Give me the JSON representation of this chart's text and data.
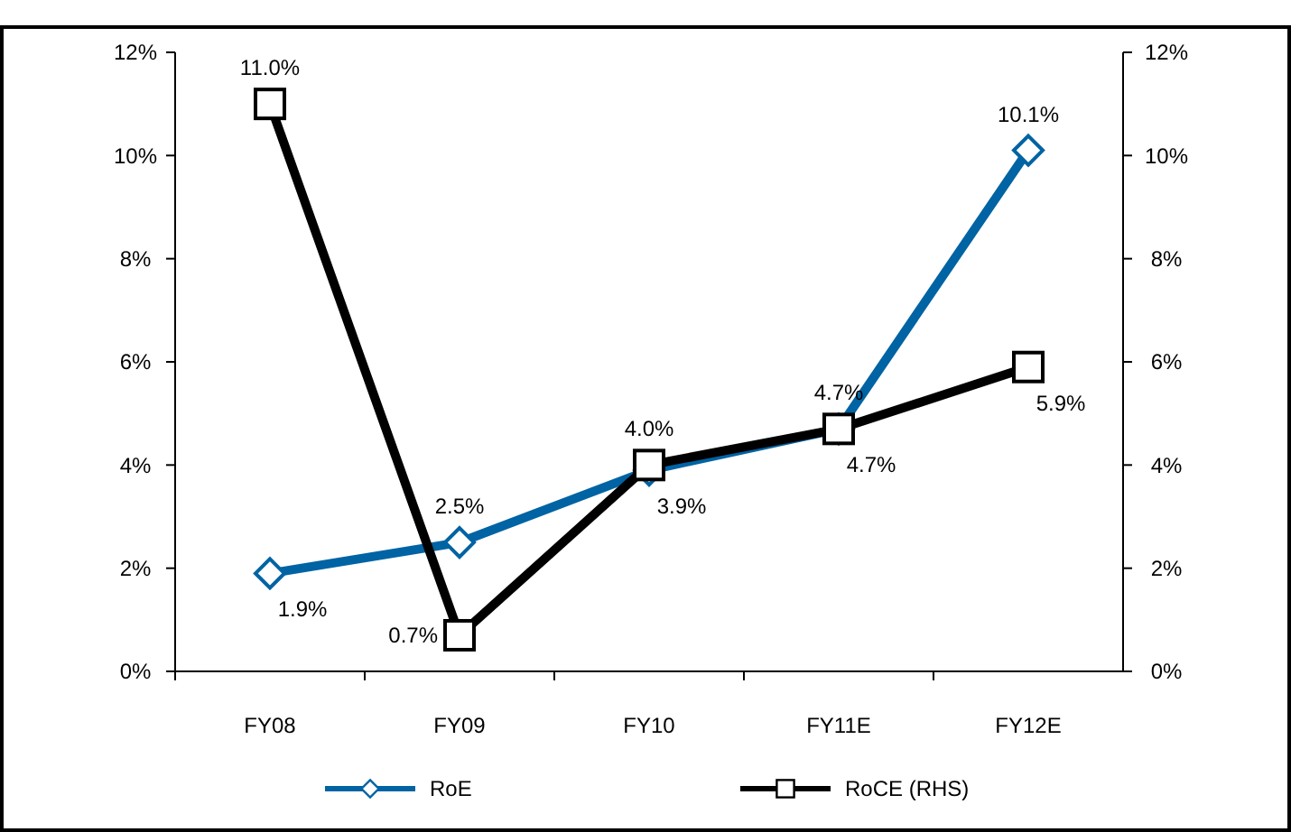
{
  "chart_data": {
    "type": "line",
    "categories": [
      "FY08",
      "FY09",
      "FY10",
      "FY11E",
      "FY12E"
    ],
    "series": [
      {
        "name": "RoE",
        "color": "#0063a3",
        "values": [
          1.9,
          2.5,
          3.9,
          4.7,
          10.1
        ],
        "value_labels": [
          "1.9%",
          "2.5%",
          "3.9%",
          "4.7%",
          "10.1%"
        ],
        "marker": "diamond"
      },
      {
        "name": "RoCE (RHS)",
        "color": "#000000",
        "values": [
          11.0,
          0.7,
          4.0,
          4.7,
          5.9
        ],
        "value_labels": [
          "11.0%",
          "0.7%",
          "4.0%",
          "4.7%",
          "5.9%"
        ],
        "marker": "square",
        "axis": "y2"
      }
    ],
    "ylim": [
      0,
      12
    ],
    "yticks": [
      {
        "value": 0,
        "label": "0%"
      },
      {
        "value": 2,
        "label": "2%"
      },
      {
        "value": 4,
        "label": "4%"
      },
      {
        "value": 6,
        "label": "6%"
      },
      {
        "value": 8,
        "label": "8%"
      },
      {
        "value": 10,
        "label": "10%"
      },
      {
        "value": 12,
        "label": "12%"
      }
    ],
    "y2lim": [
      0,
      12
    ],
    "y2ticks": [
      {
        "value": 0,
        "label": "0%"
      },
      {
        "value": 2,
        "label": "2%"
      },
      {
        "value": 4,
        "label": "4%"
      },
      {
        "value": 6,
        "label": "6%"
      },
      {
        "value": 8,
        "label": "8%"
      },
      {
        "value": 10,
        "label": "10%"
      },
      {
        "value": 12,
        "label": "12%"
      }
    ],
    "grid": false,
    "legend": "bottom",
    "line_style": "solid"
  }
}
